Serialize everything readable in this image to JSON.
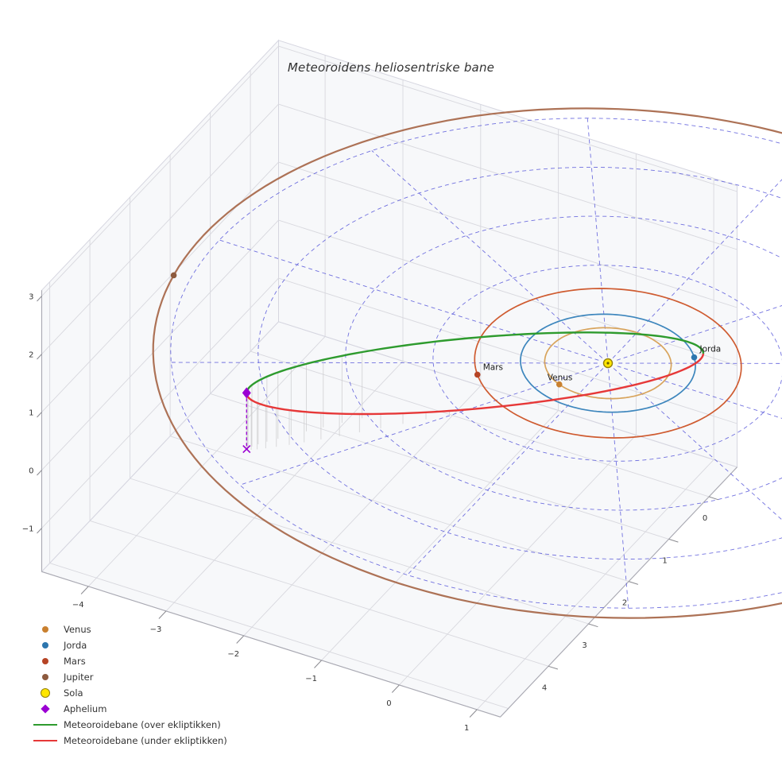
{
  "title": "Meteoroidens heliosentriske bane",
  "chart_data": {
    "type": "3d-orbit-plot",
    "title": "Meteoroidens heliosentriske bane",
    "axes": {
      "x": {
        "ticks": [
          -4,
          -3,
          -2,
          -1,
          0,
          1
        ],
        "range": [
          -4.6,
          1.3
        ]
      },
      "y": {
        "ticks": [
          0,
          1,
          2,
          3,
          4
        ],
        "range": [
          -0.7,
          5.2
        ]
      },
      "z": {
        "ticks": [
          -1,
          0,
          1,
          2,
          3
        ],
        "range": [
          -1.75,
          3.1
        ]
      }
    },
    "sun": {
      "name": "Sola",
      "position": [
        0,
        0,
        0
      ],
      "color": "#ffe600",
      "edge_color": "#93800a",
      "core_color": "#6b5e00"
    },
    "planets": [
      {
        "name": "Venus",
        "orbit_radius_au": 0.723,
        "angle_deg": 113,
        "orbit_color": "#d8a45c",
        "dot_color": "#c9802f",
        "label": "Venus",
        "label_offset": [
          -15,
          -5
        ]
      },
      {
        "name": "Jorda",
        "orbit_radius_au": 1.0,
        "angle_deg": -37,
        "orbit_color": "#3d86bd",
        "dot_color": "#2d76ae",
        "label": "Jorda",
        "label_offset": [
          7,
          -7
        ]
      },
      {
        "name": "Mars",
        "orbit_radius_au": 1.524,
        "angle_deg": 141,
        "orbit_color": "#cf5b30",
        "dot_color": "#b64425",
        "label": "Mars",
        "label_offset": [
          7,
          -6
        ]
      },
      {
        "name": "Jupiter",
        "orbit_radius_au": 5.2,
        "angle_deg": 170,
        "orbit_color": "#ad7256",
        "dot_color": "#8d5a3e",
        "label": null,
        "label_offset": null
      }
    ],
    "meteoroid_orbit": {
      "center": [
        -0.958,
        1.459,
        0.485
      ],
      "semi_major_vec": [
        1.812,
        -2.181,
        -0.485
      ],
      "semi_minor_vec": [
        -0.061,
        -0.157,
        0.476
      ],
      "above_color": "#2e9b2e",
      "below_color": "#e63838",
      "stem_range_deg": [
        120,
        264
      ],
      "stem_step_deg": 6
    },
    "aphelion": {
      "name": "Aphelium",
      "position": [
        -2.77,
        3.64,
        0.97
      ],
      "ground_point": [
        -2.77,
        3.64,
        0
      ],
      "color": "#9b00d3"
    },
    "polar_grid": {
      "radii_au": [
        1,
        2,
        3,
        4,
        5
      ],
      "n_rays": 12,
      "color": "#4343d6"
    }
  },
  "legend": {
    "items": [
      {
        "label": "Venus",
        "swatch": "dot",
        "color": "#c9802f"
      },
      {
        "label": "Jorda",
        "swatch": "dot",
        "color": "#2d76ae"
      },
      {
        "label": "Mars",
        "swatch": "dot",
        "color": "#b64425"
      },
      {
        "label": "Jupiter",
        "swatch": "dot",
        "color": "#8d5a3e"
      },
      {
        "label": "Sola",
        "swatch": "circle",
        "color": "#ffe600",
        "edge": "#93800a"
      },
      {
        "label": "Aphelium",
        "swatch": "diamond",
        "color": "#9b00d3"
      },
      {
        "label": "Meteoroidebane (over ekliptikken)",
        "swatch": "line",
        "color": "#2e9b2e"
      },
      {
        "label": "Meteoroidebane (under ekliptikken)",
        "swatch": "line",
        "color": "#e63838"
      }
    ]
  }
}
